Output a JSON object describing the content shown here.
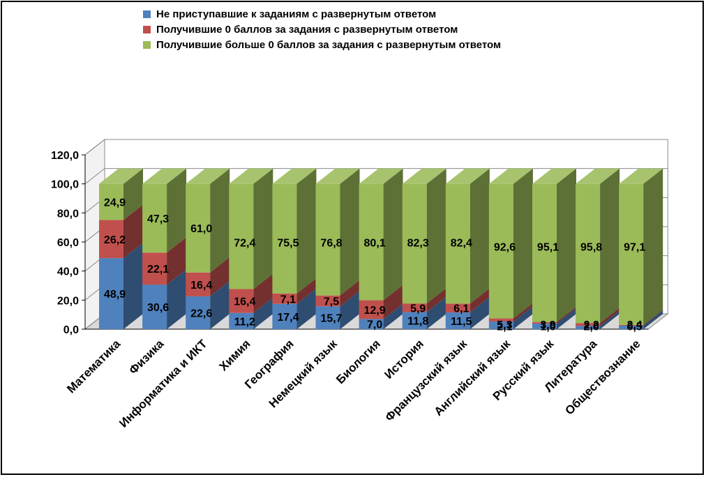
{
  "chart_data": {
    "type": "bar",
    "stacked": true,
    "style": "3d",
    "title": "",
    "xlabel": "",
    "ylabel": "",
    "ylim": [
      0,
      120
    ],
    "yticks": [
      "0,0",
      "20,0",
      "40,0",
      "60,0",
      "80,0",
      "100,0",
      "120,0"
    ],
    "grid": true,
    "legend_position": "top",
    "categories": [
      "Математика",
      "Физика",
      "Информатика и ИКТ",
      "Химия",
      "География",
      "Немецкий язык",
      "Биология",
      "История",
      "Французский язык",
      "Английский язык",
      "Русский язык",
      "Литература",
      "Обществознание"
    ],
    "series": [
      {
        "name": "Не приступавшие к заданиям с развернутым ответом",
        "color": "#4F81BD",
        "values": [
          48.9,
          30.6,
          22.6,
          11.2,
          17.4,
          15.7,
          7.0,
          11.8,
          11.5,
          5.3,
          3.9,
          2.2,
          2.4
        ],
        "labels": [
          "48,9",
          "30,6",
          "22,6",
          "11,2",
          "17,4",
          "15,7",
          "7,0",
          "11,8",
          "11,5",
          "5,3",
          "3,9",
          "2,2",
          "2,4"
        ]
      },
      {
        "name": "Получившие 0 баллов за задания с развернутым ответом",
        "color": "#C0504D",
        "values": [
          26.2,
          22.1,
          16.4,
          16.4,
          7.1,
          7.5,
          12.9,
          5.9,
          6.1,
          2.1,
          1.0,
          2.0,
          0.5
        ],
        "labels": [
          "26,2",
          "22,1",
          "16,4",
          "16,4",
          "7,1",
          "7,5",
          "12,9",
          "5,9",
          "6,1",
          "2,1",
          "1,0",
          "2,0",
          "0,5"
        ]
      },
      {
        "name": "Получившие больше 0 баллов за задания с развернутым ответом",
        "color": "#9BBB59",
        "values": [
          24.9,
          47.3,
          61.0,
          72.4,
          75.5,
          76.8,
          80.1,
          82.3,
          82.4,
          92.6,
          95.1,
          95.8,
          97.1
        ],
        "labels": [
          "24,9",
          "47,3",
          "61,0",
          "72,4",
          "75,5",
          "76,8",
          "80,1",
          "82,3",
          "82,4",
          "92,6",
          "95,1",
          "95,8",
          "97,1"
        ]
      }
    ]
  }
}
